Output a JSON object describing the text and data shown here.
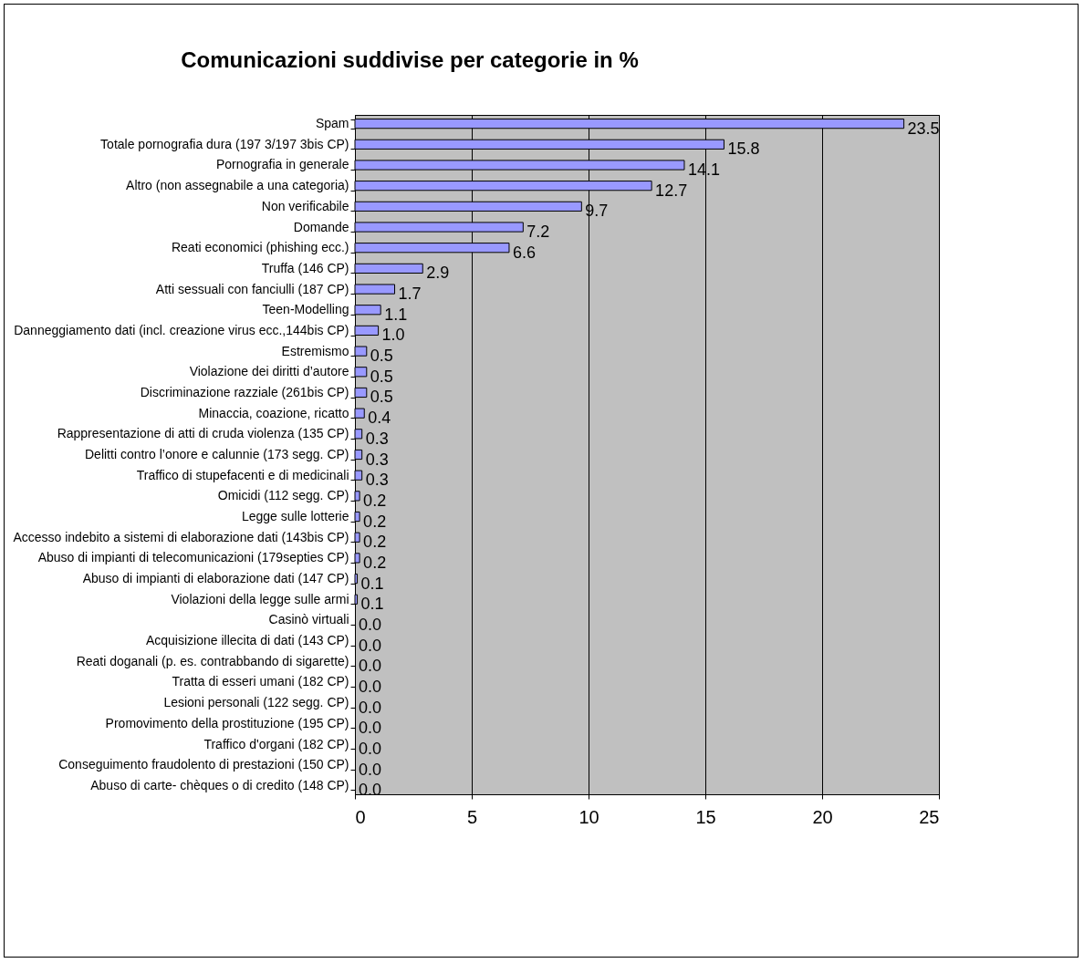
{
  "chart_data": {
    "type": "bar",
    "orientation": "horizontal",
    "title": "Comunicazioni suddivise per categorie in %",
    "categories": [
      "Spam",
      "Totale pornografia dura (197 3/197 3bis CP)",
      "Pornografia in generale",
      "Altro (non assegnabile a una categoria)",
      "Non verificabile",
      "Domande",
      "Reati economici (phishing ecc.)",
      "Truffa (146 CP)",
      "Atti sessuali con fanciulli (187 CP)",
      "Teen-Modelling",
      "Danneggiamento dati (incl. creazione virus ecc.,144bis CP)",
      "Estremismo",
      "Violazione dei diritti d’autore",
      "Discriminazione razziale (261bis CP)",
      "Minaccia, coazione, ricatto",
      "Rappresentazione di atti di cruda violenza (135 CP)",
      "Delitti contro l’onore e calunnie (173 segg. CP)",
      "Traffico di stupefacenti e di medicinali",
      "Omicidi (112 segg. CP)",
      "Legge sulle lotterie",
      "Accesso indebito a sistemi di elaborazione dati (143bis CP)",
      "Abuso di impianti di telecomunicazioni (179septies CP)",
      "Abuso di impianti di elaborazione dati (147 CP)",
      "Violazioni della legge sulle armi",
      "Casinò virtuali",
      "Acquisizione illecita di dati (143 CP)",
      "Reati doganali (p. es. contrabbando di sigarette)",
      "Tratta di esseri umani (182 CP)",
      "Lesioni personali (122 segg. CP)",
      "Promovimento della prostituzione (195 CP)",
      "Traffico d'organi (182 CP)",
      "Conseguimento fraudolento di prestazioni (150 CP)",
      "Abuso di carte- chèques o di credito (148 CP)"
    ],
    "values": [
      23.5,
      15.8,
      14.1,
      12.7,
      9.7,
      7.2,
      6.6,
      2.9,
      1.7,
      1.1,
      1.0,
      0.5,
      0.5,
      0.5,
      0.4,
      0.3,
      0.3,
      0.3,
      0.2,
      0.2,
      0.2,
      0.2,
      0.1,
      0.1,
      0.0,
      0.0,
      0.0,
      0.0,
      0.0,
      0.0,
      0.0,
      0.0,
      0.0
    ],
    "value_labels": [
      "23.5",
      "15.8",
      "14.1",
      "12.7",
      "9.7",
      "7.2",
      "6.6",
      "2.9",
      "1.7",
      "1.1",
      "1.0",
      "0.5",
      "0.5",
      "0.5",
      "0.4",
      "0.3",
      "0.3",
      "0.3",
      "0.2",
      "0.2",
      "0.2",
      "0.2",
      "0.1",
      "0.1",
      "0.0",
      "0.0",
      "0.0",
      "0.0",
      "0.0",
      "0.0",
      "0.0",
      "0.0",
      "0.0"
    ],
    "color": "#9999ff",
    "xlim": [
      0,
      25
    ],
    "xticks": [
      0,
      5,
      10,
      15,
      20,
      25
    ],
    "grid": "x"
  }
}
